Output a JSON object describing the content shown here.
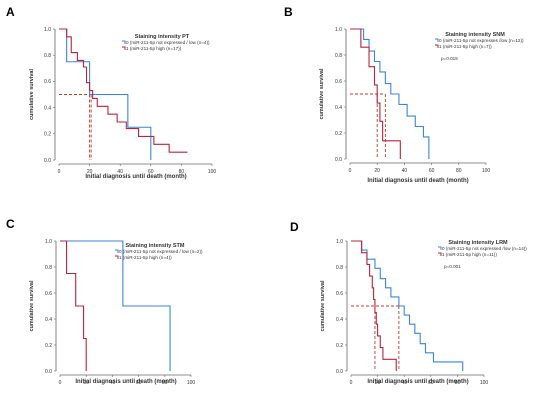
{
  "chart_data": [
    {
      "type": "line",
      "panel_label": "A",
      "legend_title": "Staining intensity PT",
      "xlabel": "Initial diagnosis until death (month)",
      "ylabel": "cumulative survival",
      "xlim": [
        0,
        100
      ],
      "ylim": [
        0,
        1
      ],
      "xticks": [
        "0",
        "20",
        "40",
        "60",
        "80",
        "100"
      ],
      "yticks": [
        "0.0",
        "0.2",
        "0.4",
        "0.6",
        "0.8",
        "1.0"
      ],
      "p_value": "",
      "median_lines": [
        20,
        21
      ],
      "series": [
        {
          "name": "0 (miR-211-5p not expressed / low (n=4))",
          "color": "#3a86d8",
          "steps": [
            [
              0,
              1.0
            ],
            [
              5,
              0.75
            ],
            [
              20,
              0.5
            ],
            [
              45,
              0.25
            ],
            [
              60,
              0.0
            ]
          ]
        },
        {
          "name": "1 (miR-211-5p high (n=17))",
          "color": "#b5253c",
          "steps": [
            [
              0,
              1.0
            ],
            [
              5,
              0.94
            ],
            [
              8,
              0.82
            ],
            [
              12,
              0.76
            ],
            [
              16,
              0.71
            ],
            [
              18,
              0.59
            ],
            [
              20,
              0.53
            ],
            [
              22,
              0.47
            ],
            [
              25,
              0.41
            ],
            [
              32,
              0.35
            ],
            [
              38,
              0.29
            ],
            [
              44,
              0.24
            ],
            [
              52,
              0.18
            ],
            [
              62,
              0.12
            ],
            [
              72,
              0.06
            ],
            [
              84,
              0.06
            ]
          ]
        }
      ]
    },
    {
      "type": "line",
      "panel_label": "B",
      "legend_title": "Staining intensity SNM",
      "xlabel": "Initial diagnosis until death (month)",
      "ylabel": "cumulative survival",
      "xlim": [
        0,
        100
      ],
      "ylim": [
        0,
        1
      ],
      "xticks": [
        "0",
        "20",
        "40",
        "60",
        "80",
        "100"
      ],
      "yticks": [
        "0.0",
        "0.2",
        "0.4",
        "0.6",
        "0.8",
        "1.0"
      ],
      "p_value": "p=0.019",
      "median_lines": [
        20,
        26
      ],
      "series": [
        {
          "name": "0 (miR-211-5p not expresses /low (n=12))",
          "color": "#3a86d8",
          "steps": [
            [
              0,
              1.0
            ],
            [
              10,
              0.92
            ],
            [
              14,
              0.83
            ],
            [
              18,
              0.75
            ],
            [
              22,
              0.67
            ],
            [
              26,
              0.58
            ],
            [
              30,
              0.5
            ],
            [
              36,
              0.42
            ],
            [
              42,
              0.33
            ],
            [
              48,
              0.25
            ],
            [
              54,
              0.17
            ],
            [
              58,
              0.08
            ],
            [
              58,
              0.0
            ]
          ]
        },
        {
          "name": "1 (miR-211-5p high (n=7))",
          "color": "#b5253c",
          "steps": [
            [
              0,
              1.0
            ],
            [
              8,
              0.86
            ],
            [
              14,
              0.71
            ],
            [
              18,
              0.57
            ],
            [
              20,
              0.43
            ],
            [
              22,
              0.29
            ],
            [
              24,
              0.14
            ],
            [
              37,
              0.14
            ],
            [
              37,
              0.0
            ]
          ]
        }
      ]
    },
    {
      "type": "line",
      "panel_label": "C",
      "legend_title": "Staining intensity STM",
      "xlabel": "Initial diagnosis until death (month)",
      "ylabel": "cumulative survival",
      "xlim": [
        0,
        100
      ],
      "ylim": [
        0,
        1
      ],
      "xticks": [
        "0",
        "20",
        "40",
        "60",
        "80",
        "100"
      ],
      "yticks": [
        "0.0",
        "0.2",
        "0.4",
        "0.6",
        "0.8",
        "1.0"
      ],
      "p_value": "",
      "median_lines": [],
      "series": [
        {
          "name": "0 (miR-211-5p not expressed / low (n=2))",
          "color": "#3a86d8",
          "steps": [
            [
              0,
              1.0
            ],
            [
              48,
              0.5
            ],
            [
              84,
              0.0
            ]
          ]
        },
        {
          "name": "1 (miR-211-5p high (n=4))",
          "color": "#b5253c",
          "steps": [
            [
              0,
              1.0
            ],
            [
              5,
              0.75
            ],
            [
              12,
              0.5
            ],
            [
              18,
              0.25
            ],
            [
              20,
              0.0
            ]
          ]
        }
      ]
    },
    {
      "type": "line",
      "panel_label": "D",
      "legend_title": "Staining intensity LRM",
      "xlabel": "Initial diagnosis until death (month)",
      "ylabel": "cumulative survival",
      "xlim": [
        0,
        100
      ],
      "ylim": [
        0,
        1
      ],
      "xticks": [
        "0",
        "20",
        "40",
        "60",
        "80",
        "100"
      ],
      "yticks": [
        "0.0",
        "0.2",
        "0.4",
        "0.6",
        "0.8",
        "1.0"
      ],
      "p_value": "p=0.001",
      "median_lines": [
        18,
        36
      ],
      "series": [
        {
          "name": "0 (miR-211-5p not expressed /low (n=14))",
          "color": "#3a86d8",
          "steps": [
            [
              0,
              1.0
            ],
            [
              8,
              0.93
            ],
            [
              12,
              0.86
            ],
            [
              18,
              0.79
            ],
            [
              22,
              0.71
            ],
            [
              26,
              0.64
            ],
            [
              30,
              0.57
            ],
            [
              36,
              0.5
            ],
            [
              40,
              0.43
            ],
            [
              44,
              0.36
            ],
            [
              48,
              0.29
            ],
            [
              52,
              0.21
            ],
            [
              56,
              0.14
            ],
            [
              62,
              0.07
            ],
            [
              84,
              0.07
            ],
            [
              84,
              0.0
            ]
          ]
        },
        {
          "name": "1 (miR-211-5p high (n=11))",
          "color": "#b5253c",
          "steps": [
            [
              0,
              1.0
            ],
            [
              8,
              0.91
            ],
            [
              12,
              0.82
            ],
            [
              14,
              0.73
            ],
            [
              16,
              0.64
            ],
            [
              17,
              0.55
            ],
            [
              18,
              0.45
            ],
            [
              19,
              0.36
            ],
            [
              20,
              0.27
            ],
            [
              22,
              0.18
            ],
            [
              24,
              0.09
            ],
            [
              34,
              0.09
            ],
            [
              34,
              0.0
            ]
          ]
        }
      ]
    }
  ]
}
